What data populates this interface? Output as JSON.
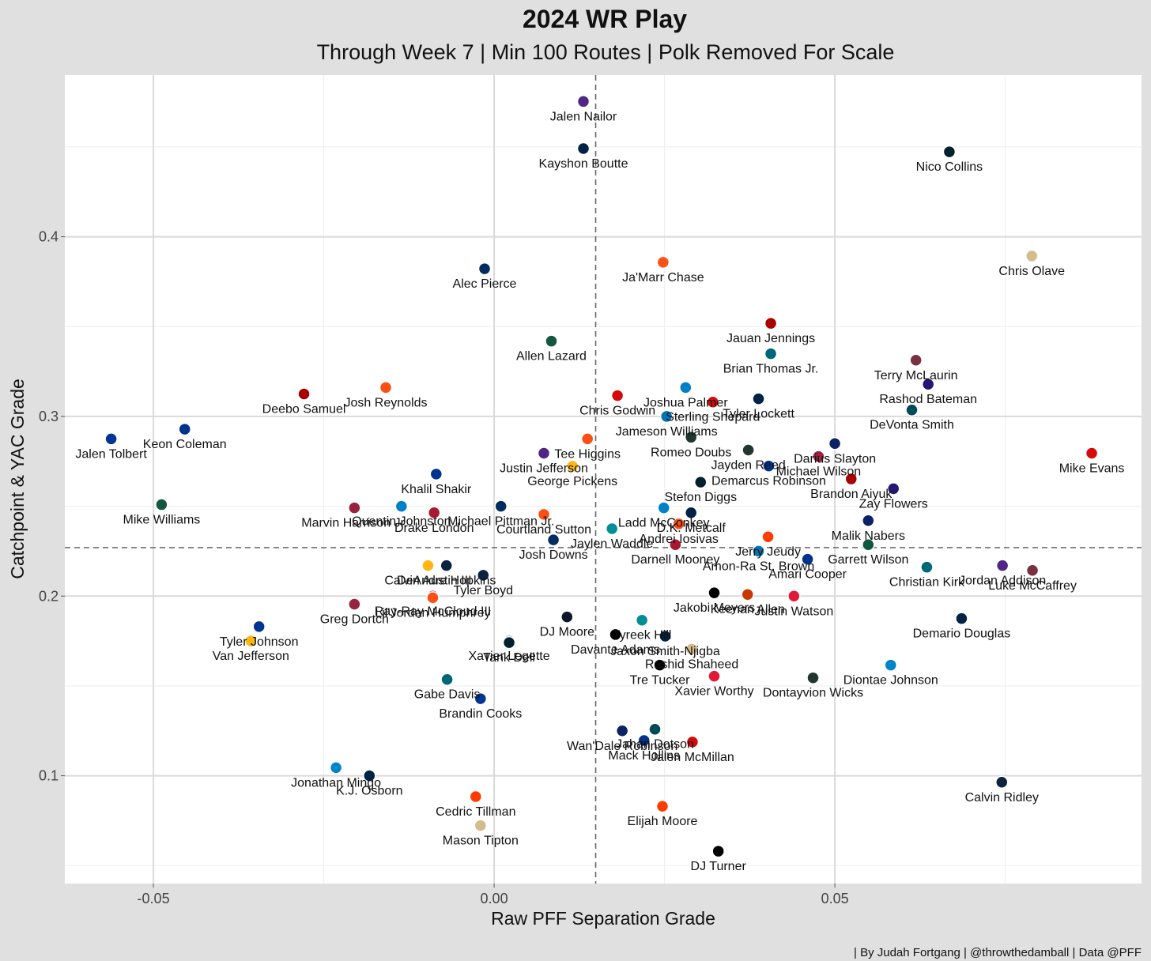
{
  "chart_data": {
    "type": "scatter",
    "title": "2024 WR Play",
    "subtitle": "Through Week 7 | Min 100 Routes | Polk Removed For Scale",
    "xlabel": "Raw PFF Separation Grade",
    "ylabel": "Catchpoint & YAC Grade",
    "caption": "| By Judah Fortgang | @throwthedamball | Data @PFF",
    "xlim": [
      -0.063,
      0.095
    ],
    "ylim": [
      0.04,
      0.49
    ],
    "x_ticks": [
      -0.05,
      0.0,
      0.05
    ],
    "x_tick_labels": [
      "-0.05",
      "0.00",
      "0.05"
    ],
    "y_ticks": [
      0.1,
      0.2,
      0.3,
      0.4
    ],
    "y_tick_labels": [
      "0.1",
      "0.2",
      "0.3",
      "0.4"
    ],
    "mean_x": 0.0149,
    "mean_y": 0.227,
    "grid": true,
    "points": [
      {
        "name": "Jalen Nailor",
        "x": 0.0131,
        "y": 0.4753,
        "color": "#4f2683"
      },
      {
        "name": "Kayshon Boutte",
        "x": 0.0131,
        "y": 0.4491,
        "color": "#002244"
      },
      {
        "name": "Nico Collins",
        "x": 0.0668,
        "y": 0.4473,
        "color": "#03202f"
      },
      {
        "name": "Chris Olave",
        "x": 0.0789,
        "y": 0.3893,
        "color": "#d3bc8d"
      },
      {
        "name": "Alec Pierce",
        "x": -0.0014,
        "y": 0.3822,
        "color": "#002c5f"
      },
      {
        "name": "Ja'Marr Chase",
        "x": 0.0248,
        "y": 0.3858,
        "color": "#fb4f14"
      },
      {
        "name": "Jauan Jennings",
        "x": 0.0406,
        "y": 0.3518,
        "color": "#aa0000"
      },
      {
        "name": "Allen Lazard",
        "x": 0.0084,
        "y": 0.3419,
        "color": "#125740"
      },
      {
        "name": "Brian Thomas Jr.",
        "x": 0.0406,
        "y": 0.3349,
        "color": "#006778"
      },
      {
        "name": "Terry McLaurin",
        "x": 0.0619,
        "y": 0.3313,
        "color": "#773141"
      },
      {
        "name": "Joshua Palmer",
        "x": 0.0281,
        "y": 0.3161,
        "color": "#0080c6"
      },
      {
        "name": "Rashod Bateman",
        "x": 0.0637,
        "y": 0.3179,
        "color": "#241773"
      },
      {
        "name": "Deebo Samuel",
        "x": -0.0279,
        "y": 0.3125,
        "color": "#aa0000"
      },
      {
        "name": "Josh Reynolds",
        "x": -0.0159,
        "y": 0.3161,
        "color": "#fb4f14"
      },
      {
        "name": "Chris Godwin",
        "x": 0.0181,
        "y": 0.3116,
        "color": "#d50a0a"
      },
      {
        "name": "Tyler Lockett",
        "x": 0.0388,
        "y": 0.3098,
        "color": "#002244"
      },
      {
        "name": "Sterling Shepard",
        "x": 0.0321,
        "y": 0.308,
        "color": "#d50a0a"
      },
      {
        "name": "DeVonta Smith",
        "x": 0.0613,
        "y": 0.3036,
        "color": "#004c54"
      },
      {
        "name": "Keon Coleman",
        "x": -0.0454,
        "y": 0.2929,
        "color": "#00338d"
      },
      {
        "name": "Tee Higgins",
        "x": 0.0137,
        "y": 0.2875,
        "color": "#fb4f14"
      },
      {
        "name": "Jameson Williams",
        "x": 0.0253,
        "y": 0.3,
        "color": "#0076b6"
      },
      {
        "name": "Jalen Tolbert",
        "x": -0.0562,
        "y": 0.2875,
        "color": "#003594"
      },
      {
        "name": "Romeo Doubs",
        "x": 0.0289,
        "y": 0.2884,
        "color": "#203731"
      },
      {
        "name": "Darius Slayton",
        "x": 0.05,
        "y": 0.2849,
        "color": "#0b2265"
      },
      {
        "name": "Jayden Reed",
        "x": 0.0373,
        "y": 0.2813,
        "color": "#203731"
      },
      {
        "name": "Justin Jefferson",
        "x": 0.0073,
        "y": 0.2795,
        "color": "#4f2683"
      },
      {
        "name": "Mike Evans",
        "x": 0.0877,
        "y": 0.2795,
        "color": "#d50a0a"
      },
      {
        "name": "Michael Wilson",
        "x": 0.0476,
        "y": 0.2777,
        "color": "#97233f"
      },
      {
        "name": "George Pickens",
        "x": 0.0115,
        "y": 0.2723,
        "color": "#ffb612"
      },
      {
        "name": "Demarcus Robinson",
        "x": 0.0403,
        "y": 0.2724,
        "color": "#003594"
      },
      {
        "name": "Khalil Shakir",
        "x": -0.0085,
        "y": 0.2679,
        "color": "#00338d"
      },
      {
        "name": "Stefon Diggs",
        "x": 0.0303,
        "y": 0.2634,
        "color": "#03202f"
      },
      {
        "name": "Brandon Aiyuk",
        "x": 0.0524,
        "y": 0.2652,
        "color": "#aa0000"
      },
      {
        "name": "Zay Flowers",
        "x": 0.0586,
        "y": 0.2598,
        "color": "#241773"
      },
      {
        "name": "Quentin Johnston",
        "x": -0.0136,
        "y": 0.25,
        "color": "#0080c6"
      },
      {
        "name": "Marvin Harrison Jr.",
        "x": -0.0205,
        "y": 0.2491,
        "color": "#97233f"
      },
      {
        "name": "Michael Pittman Jr.",
        "x": 0.001,
        "y": 0.25,
        "color": "#002c5f"
      },
      {
        "name": "Mike Williams",
        "x": -0.0488,
        "y": 0.2509,
        "color": "#125740"
      },
      {
        "name": "Drake London",
        "x": -0.0088,
        "y": 0.2464,
        "color": "#a71930"
      },
      {
        "name": "Ladd McConkey",
        "x": 0.0249,
        "y": 0.2491,
        "color": "#0080c6"
      },
      {
        "name": "D.K. Metcalf",
        "x": 0.0289,
        "y": 0.2464,
        "color": "#002244"
      },
      {
        "name": "Courtland Sutton",
        "x": 0.0073,
        "y": 0.2455,
        "color": "#fb4f14"
      },
      {
        "name": "Malik Nabers",
        "x": 0.0549,
        "y": 0.242,
        "color": "#0b2265"
      },
      {
        "name": "Jaylen Waddle",
        "x": 0.0173,
        "y": 0.2375,
        "color": "#008e97"
      },
      {
        "name": "Jerry Jeudy",
        "x": 0.0402,
        "y": 0.233,
        "color": "#ff3c00"
      },
      {
        "name": "Andrei Iosivas",
        "x": 0.0271,
        "y": 0.2402,
        "color": "#fb4f14"
      },
      {
        "name": "Darnell Mooney",
        "x": 0.0266,
        "y": 0.2286,
        "color": "#a71930"
      },
      {
        "name": "Amon-Ra St. Brown",
        "x": 0.0388,
        "y": 0.225,
        "color": "#0076b6"
      },
      {
        "name": "Garrett Wilson",
        "x": 0.0549,
        "y": 0.2286,
        "color": "#125740"
      },
      {
        "name": "Jordan Addison",
        "x": 0.0746,
        "y": 0.217,
        "color": "#4f2683"
      },
      {
        "name": "Josh Downs",
        "x": 0.0087,
        "y": 0.2313,
        "color": "#002c5f"
      },
      {
        "name": "Calvin Austin III",
        "x": -0.0097,
        "y": 0.217,
        "color": "#ffb612"
      },
      {
        "name": "DeAndre Hopkins",
        "x": -0.007,
        "y": 0.217,
        "color": "#0c2340"
      },
      {
        "name": "Tyler Boyd",
        "x": -0.0016,
        "y": 0.2116,
        "color": "#0c2340"
      },
      {
        "name": "Amari Cooper",
        "x": 0.046,
        "y": 0.2205,
        "color": "#00338d"
      },
      {
        "name": "Christian Kirk",
        "x": 0.0635,
        "y": 0.2161,
        "color": "#006778"
      },
      {
        "name": "Luke McCaffrey",
        "x": 0.079,
        "y": 0.2143,
        "color": "#773141"
      },
      {
        "name": "Ray-Ray McCloud III",
        "x": -0.009,
        "y": 0.2,
        "color": "#a71930"
      },
      {
        "name": "Jakobi Meyers",
        "x": 0.0323,
        "y": 0.2018,
        "color": "#000000"
      },
      {
        "name": "Keenan Allen",
        "x": 0.0372,
        "y": 0.2009,
        "color": "#c83803"
      },
      {
        "name": "Justin Watson",
        "x": 0.044,
        "y": 0.2,
        "color": "#e31837"
      },
      {
        "name": "Greg Dortch",
        "x": -0.0205,
        "y": 0.1955,
        "color": "#97233f"
      },
      {
        "name": "Lil'Jordan Humphrey",
        "x": -0.009,
        "y": 0.1991,
        "color": "#fb4f14"
      },
      {
        "name": "DJ Moore",
        "x": 0.0107,
        "y": 0.1884,
        "color": "#0b162a"
      },
      {
        "name": "Tyreek Hill",
        "x": 0.0217,
        "y": 0.1866,
        "color": "#008e97"
      },
      {
        "name": "Demario Douglas",
        "x": 0.0686,
        "y": 0.1875,
        "color": "#002244"
      },
      {
        "name": "Tyler Johnson",
        "x": -0.0345,
        "y": 0.183,
        "color": "#003594"
      },
      {
        "name": "Jaxon Smith-Njigba",
        "x": 0.0251,
        "y": 0.1777,
        "color": "#002244"
      },
      {
        "name": "Davante Adams",
        "x": 0.0178,
        "y": 0.1786,
        "color": "#000000"
      },
      {
        "name": "Xavier Legette",
        "x": 0.0022,
        "y": 0.175,
        "color": "#0085ca"
      },
      {
        "name": "Van Jefferson",
        "x": -0.0357,
        "y": 0.175,
        "color": "#ffb612"
      },
      {
        "name": "Rashid Shaheed",
        "x": 0.029,
        "y": 0.1705,
        "color": "#d3bc8d"
      },
      {
        "name": "Tank Dell",
        "x": 0.0022,
        "y": 0.1741,
        "color": "#03202f"
      },
      {
        "name": "Diontae Johnson",
        "x": 0.0582,
        "y": 0.1616,
        "color": "#0085ca"
      },
      {
        "name": "Tre Tucker",
        "x": 0.0243,
        "y": 0.1616,
        "color": "#000000"
      },
      {
        "name": "Xavier Worthy",
        "x": 0.0323,
        "y": 0.1554,
        "color": "#e31837"
      },
      {
        "name": "Dontayvion Wicks",
        "x": 0.0468,
        "y": 0.1545,
        "color": "#203731"
      },
      {
        "name": "Gabe Davis",
        "x": -0.0069,
        "y": 0.1536,
        "color": "#006778"
      },
      {
        "name": "Brandin Cooks",
        "x": -0.002,
        "y": 0.1429,
        "color": "#003594"
      },
      {
        "name": "Wan'Dale Robinson",
        "x": 0.0188,
        "y": 0.125,
        "color": "#0b2265"
      },
      {
        "name": "Jahan Dotson",
        "x": 0.0236,
        "y": 0.1259,
        "color": "#004c54"
      },
      {
        "name": "Mack Hollins",
        "x": 0.022,
        "y": 0.1196,
        "color": "#00338d"
      },
      {
        "name": "Jalen McMillan",
        "x": 0.0291,
        "y": 0.1188,
        "color": "#d50a0a"
      },
      {
        "name": "Jonathan Mingo",
        "x": -0.0232,
        "y": 0.1045,
        "color": "#0085ca"
      },
      {
        "name": "K.J. Osborn",
        "x": -0.0183,
        "y": 0.1,
        "color": "#002244"
      },
      {
        "name": "Calvin Ridley",
        "x": 0.0745,
        "y": 0.0964,
        "color": "#0c2340"
      },
      {
        "name": "Cedric Tillman",
        "x": -0.0027,
        "y": 0.0884,
        "color": "#ff3c00"
      },
      {
        "name": "Elijah Moore",
        "x": 0.0247,
        "y": 0.083,
        "color": "#ff3c00"
      },
      {
        "name": "Mason Tipton",
        "x": -0.002,
        "y": 0.0723,
        "color": "#d3bc8d"
      },
      {
        "name": "DJ Turner",
        "x": 0.0329,
        "y": 0.058,
        "color": "#000000"
      }
    ]
  }
}
